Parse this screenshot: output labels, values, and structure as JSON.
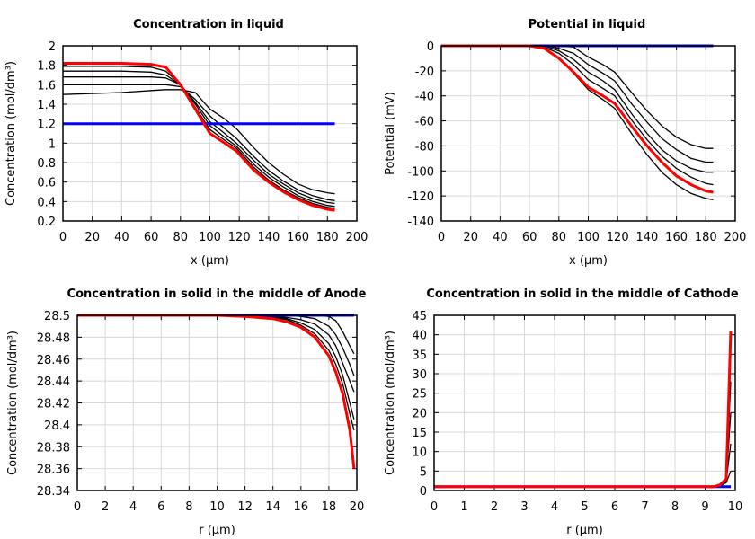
{
  "chart_data": [
    {
      "type": "line",
      "title": "Concentration in liquid",
      "xlabel": "x (µm)",
      "ylabel": "Concentration (mol/dm³)",
      "xlim": [
        0,
        200
      ],
      "ylim": [
        0.2,
        2
      ],
      "xticks": [
        "0",
        "20",
        "40",
        "60",
        "80",
        "100",
        "120",
        "140",
        "160",
        "180",
        "200"
      ],
      "yticks": [
        "0.2",
        "0.4",
        "0.6",
        "0.8",
        "1",
        "1.2",
        "1.4",
        "1.6",
        "1.8",
        "2"
      ],
      "grid": true,
      "x": [
        0,
        20,
        40,
        60,
        70,
        80,
        90,
        100,
        110,
        118,
        130,
        140,
        150,
        160,
        170,
        180,
        185
      ],
      "series": [
        {
          "color": "#000000",
          "values": [
            1.5,
            1.51,
            1.52,
            1.54,
            1.55,
            1.55,
            1.52,
            1.35,
            1.25,
            1.15,
            0.95,
            0.8,
            0.68,
            0.58,
            0.52,
            0.49,
            0.48
          ]
        },
        {
          "color": "#000000",
          "values": [
            1.6,
            1.6,
            1.6,
            1.6,
            1.6,
            1.58,
            1.45,
            1.28,
            1.15,
            1.05,
            0.86,
            0.72,
            0.61,
            0.52,
            0.46,
            0.42,
            0.41
          ]
        },
        {
          "color": "#000000",
          "values": [
            1.68,
            1.68,
            1.68,
            1.68,
            1.67,
            1.6,
            1.42,
            1.22,
            1.1,
            1.0,
            0.82,
            0.68,
            0.58,
            0.49,
            0.43,
            0.39,
            0.38
          ]
        },
        {
          "color": "#000000",
          "values": [
            1.74,
            1.74,
            1.74,
            1.73,
            1.7,
            1.6,
            1.4,
            1.18,
            1.06,
            0.97,
            0.78,
            0.65,
            0.55,
            0.46,
            0.4,
            0.36,
            0.35
          ]
        },
        {
          "color": "#000000",
          "values": [
            1.79,
            1.79,
            1.79,
            1.78,
            1.74,
            1.6,
            1.37,
            1.14,
            1.03,
            0.95,
            0.75,
            0.62,
            0.52,
            0.44,
            0.38,
            0.34,
            0.33
          ]
        },
        {
          "color": "#0000ff",
          "values": [
            1.2,
            1.2,
            1.2,
            1.2,
            1.2,
            1.2,
            1.2,
            1.2,
            1.2,
            1.2,
            1.2,
            1.2,
            1.2,
            1.2,
            1.2,
            1.2,
            1.2
          ]
        },
        {
          "color": "#ff0000",
          "values": [
            1.82,
            1.82,
            1.82,
            1.81,
            1.78,
            1.6,
            1.35,
            1.1,
            1.0,
            0.92,
            0.72,
            0.6,
            0.5,
            0.42,
            0.36,
            0.32,
            0.31
          ]
        }
      ]
    },
    {
      "type": "line",
      "title": "Potential in liquid",
      "xlabel": "x (µm)",
      "ylabel": "Potential (mV)",
      "xlim": [
        0,
        200
      ],
      "ylim": [
        -140,
        0
      ],
      "xticks": [
        "0",
        "20",
        "40",
        "60",
        "80",
        "100",
        "120",
        "140",
        "160",
        "180",
        "200"
      ],
      "yticks": [
        "-140",
        "-120",
        "-100",
        "-80",
        "-60",
        "-40",
        "-20",
        "0"
      ],
      "grid": true,
      "x": [
        0,
        20,
        40,
        60,
        70,
        80,
        90,
        100,
        110,
        118,
        130,
        140,
        150,
        160,
        170,
        180,
        185
      ],
      "series": [
        {
          "color": "#000000",
          "values": [
            0,
            0,
            0,
            0,
            0,
            0,
            -1,
            -9,
            -15,
            -21,
            -38,
            -52,
            -64,
            -73,
            -79,
            -82,
            -82
          ]
        },
        {
          "color": "#000000",
          "values": [
            0,
            0,
            0,
            0,
            0,
            -2,
            -6,
            -15,
            -22,
            -28,
            -47,
            -61,
            -74,
            -83,
            -90,
            -93,
            -93
          ]
        },
        {
          "color": "#000000",
          "values": [
            0,
            0,
            0,
            0,
            0,
            -4,
            -11,
            -21,
            -28,
            -35,
            -55,
            -70,
            -83,
            -92,
            -98,
            -101,
            -101
          ]
        },
        {
          "color": "#000000",
          "values": [
            0,
            0,
            0,
            0,
            -1,
            -6,
            -15,
            -27,
            -34,
            -40,
            -60,
            -75,
            -88,
            -98,
            -105,
            -110,
            -111
          ]
        },
        {
          "color": "#000000",
          "values": [
            0,
            0,
            0,
            0,
            -2,
            -10,
            -22,
            -35,
            -43,
            -50,
            -71,
            -87,
            -101,
            -111,
            -118,
            -122,
            -123
          ]
        },
        {
          "color": "#0000ff",
          "values": [
            0,
            0,
            0,
            0,
            0,
            0,
            0,
            0,
            0,
            0,
            0,
            0,
            0,
            0,
            0,
            0,
            0
          ]
        },
        {
          "color": "#ff0000",
          "values": [
            0,
            0,
            0,
            0,
            -2,
            -10,
            -21,
            -33,
            -40,
            -46,
            -65,
            -80,
            -93,
            -104,
            -111,
            -116,
            -117
          ]
        }
      ]
    },
    {
      "type": "line",
      "title": "Concentration in solid in the middle of Anode",
      "xlabel": "r (µm)",
      "ylabel": "Concentration (mol/dm³)",
      "xlim": [
        0,
        20
      ],
      "ylim": [
        28.34,
        28.5
      ],
      "xticks": [
        "0",
        "2",
        "4",
        "6",
        "8",
        "10",
        "12",
        "14",
        "16",
        "18",
        "20"
      ],
      "yticks": [
        "28.34",
        "28.36",
        "28.38",
        "28.4",
        "28.42",
        "28.44",
        "28.46",
        "28.48",
        "28.5"
      ],
      "grid": true,
      "x": [
        0,
        10,
        12,
        14,
        15,
        16,
        17,
        18,
        18.5,
        19,
        19.5,
        19.8
      ],
      "series": [
        {
          "color": "#000000",
          "values": [
            28.5,
            28.5,
            28.5,
            28.5,
            28.5,
            28.5,
            28.5,
            28.499,
            28.495,
            28.485,
            28.472,
            28.465
          ]
        },
        {
          "color": "#000000",
          "values": [
            28.5,
            28.5,
            28.5,
            28.5,
            28.5,
            28.499,
            28.497,
            28.49,
            28.482,
            28.47,
            28.455,
            28.445
          ]
        },
        {
          "color": "#000000",
          "values": [
            28.5,
            28.5,
            28.5,
            28.499,
            28.498,
            28.496,
            28.492,
            28.482,
            28.472,
            28.456,
            28.44,
            28.43
          ]
        },
        {
          "color": "#000000",
          "values": [
            28.5,
            28.5,
            28.5,
            28.499,
            28.497,
            28.493,
            28.487,
            28.474,
            28.462,
            28.445,
            28.42,
            28.405
          ]
        },
        {
          "color": "#000000",
          "values": [
            28.5,
            28.5,
            28.5,
            28.498,
            28.496,
            28.491,
            28.483,
            28.468,
            28.455,
            28.437,
            28.41,
            28.395
          ]
        },
        {
          "color": "#0000ff",
          "values": [
            28.5,
            28.5,
            28.5,
            28.5,
            28.5,
            28.5,
            28.5,
            28.5,
            28.5,
            28.5,
            28.5,
            28.5
          ]
        },
        {
          "color": "#ff0000",
          "values": [
            28.5,
            28.5,
            28.499,
            28.497,
            28.494,
            28.489,
            28.48,
            28.463,
            28.448,
            28.428,
            28.395,
            28.36
          ]
        }
      ]
    },
    {
      "type": "line",
      "title": "Concentration in solid in the middle of Cathode",
      "xlabel": "r (µm)",
      "ylabel": "Concentration (mol/dm³)",
      "xlim": [
        0,
        10
      ],
      "ylim": [
        0,
        45
      ],
      "xticks": [
        "0",
        "1",
        "2",
        "3",
        "4",
        "5",
        "6",
        "7",
        "8",
        "9",
        "10"
      ],
      "yticks": [
        "0",
        "5",
        "10",
        "15",
        "20",
        "25",
        "30",
        "35",
        "40",
        "45"
      ],
      "grid": true,
      "x": [
        0,
        9.3,
        9.5,
        9.7,
        9.85
      ],
      "series": [
        {
          "color": "#000000",
          "values": [
            1,
            1,
            1.2,
            2,
            5
          ]
        },
        {
          "color": "#000000",
          "values": [
            1,
            1,
            1.3,
            2.5,
            12
          ]
        },
        {
          "color": "#000000",
          "values": [
            1,
            1,
            1.4,
            2.7,
            20
          ]
        },
        {
          "color": "#000000",
          "values": [
            1,
            1,
            1.5,
            3,
            28
          ]
        },
        {
          "color": "#000000",
          "values": [
            1,
            1,
            1.5,
            3,
            35
          ]
        },
        {
          "color": "#0000ff",
          "values": [
            1,
            1,
            1,
            1,
            1
          ]
        },
        {
          "color": "#ff0000",
          "values": [
            1,
            1,
            1.5,
            3,
            41
          ]
        }
      ]
    }
  ]
}
